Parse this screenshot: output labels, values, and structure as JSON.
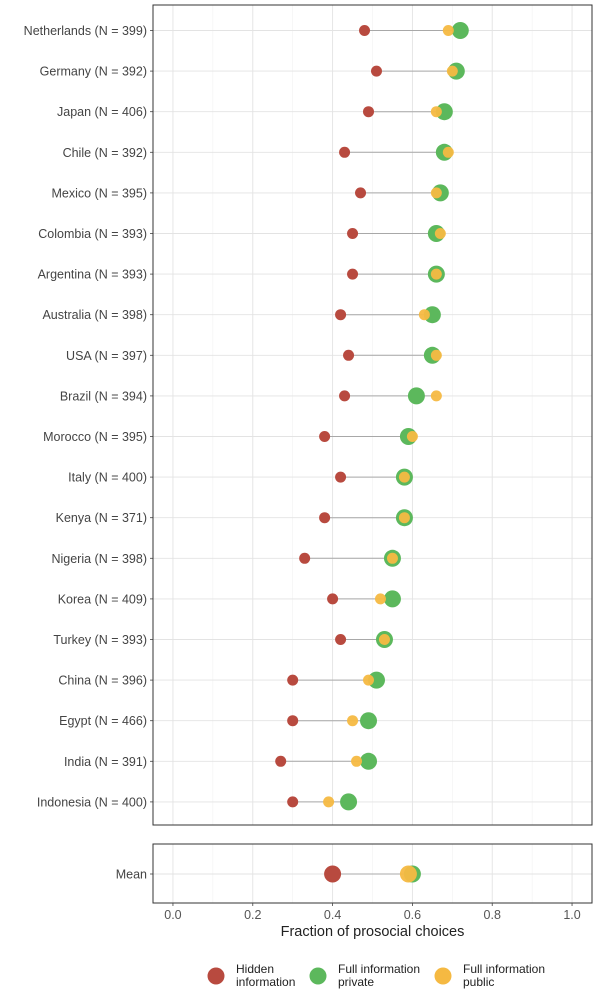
{
  "chart_data": {
    "type": "scatter",
    "xlabel": "Fraction of prosocial choices",
    "xlim": [
      -0.05,
      1.05
    ],
    "x_ticks": [
      "0.0",
      "0.2",
      "0.4",
      "0.6",
      "0.8",
      "1.0"
    ],
    "x_tick_values": [
      0,
      0.2,
      0.4,
      0.6,
      0.8,
      1.0
    ],
    "grid": true,
    "legend_position": "bottom",
    "categories": [
      "Netherlands (N = 399)",
      "Germany (N = 392)",
      "Japan (N = 406)",
      "Chile (N = 392)",
      "Mexico (N = 395)",
      "Colombia (N = 393)",
      "Argentina (N = 393)",
      "Australia (N = 398)",
      "USA (N = 397)",
      "Brazil (N = 394)",
      "Morocco (N = 395)",
      "Italy (N = 400)",
      "Kenya (N = 371)",
      "Nigeria (N = 398)",
      "Korea (N = 409)",
      "Turkey (N = 393)",
      "China (N = 396)",
      "Egypt (N = 466)",
      "India (N = 391)",
      "Indonesia (N = 400)"
    ],
    "series": [
      {
        "name": "Hidden information",
        "color": "#b84a3f",
        "values": [
          0.48,
          0.51,
          0.49,
          0.43,
          0.47,
          0.45,
          0.45,
          0.42,
          0.44,
          0.43,
          0.38,
          0.42,
          0.38,
          0.33,
          0.4,
          0.42,
          0.3,
          0.3,
          0.27,
          0.3
        ]
      },
      {
        "name": "Full information private",
        "color": "#5cb85c",
        "values": [
          0.72,
          0.71,
          0.68,
          0.68,
          0.67,
          0.66,
          0.66,
          0.65,
          0.65,
          0.61,
          0.59,
          0.58,
          0.58,
          0.55,
          0.55,
          0.53,
          0.51,
          0.49,
          0.49,
          0.44
        ]
      },
      {
        "name": "Full information public",
        "color": "#f5b942",
        "values": [
          0.69,
          0.7,
          0.66,
          0.69,
          0.66,
          0.67,
          0.66,
          0.63,
          0.66,
          0.66,
          0.6,
          0.58,
          0.58,
          0.55,
          0.52,
          0.53,
          0.49,
          0.45,
          0.46,
          0.39
        ]
      }
    ],
    "mean_panel": {
      "category": "Mean",
      "values": {
        "Hidden information": 0.4,
        "Full information private": 0.6,
        "Full information public": 0.59
      }
    },
    "legend": [
      {
        "line1": "Hidden",
        "line2": "information",
        "color": "#b84a3f"
      },
      {
        "line1": "Full information",
        "line2": "private",
        "color": "#5cb85c"
      },
      {
        "line1": "Full information",
        "line2": "public",
        "color": "#f5b942"
      }
    ]
  }
}
